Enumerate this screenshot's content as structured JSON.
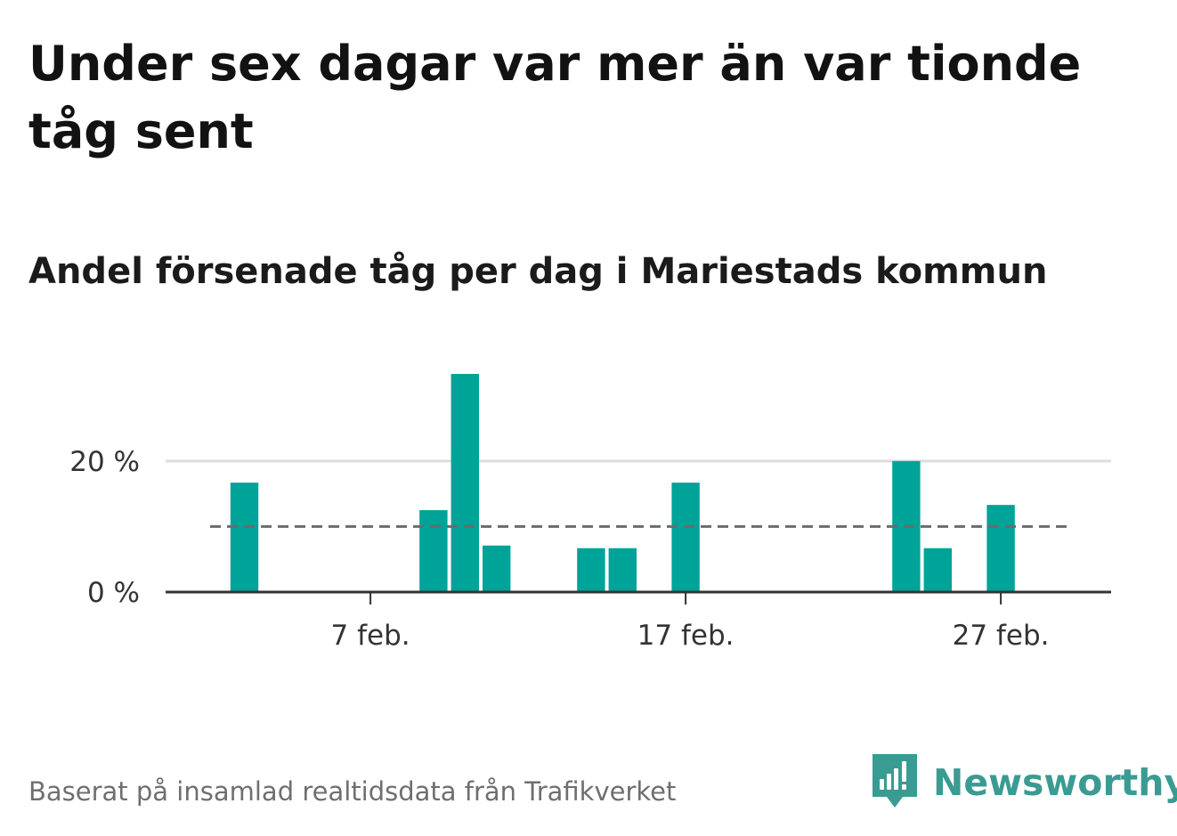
{
  "title": "Under sex dagar var mer än var tionde tåg sent",
  "subtitle": "Andel försenade tåg per dag i Mariestads kommun",
  "source": "Baserat på insamlad realtidsdata från Trafikverket",
  "brand": {
    "name": "Newsworthy",
    "icon": "newsworthy-logo-icon",
    "color": "#3a9b92"
  },
  "colors": {
    "bar": "#00a398",
    "reference_line": "#6b6b6b",
    "grid": "#dddddd",
    "axis": "#333333"
  },
  "chart_data": {
    "type": "bar",
    "x_unit": "day of February",
    "x": [
      3,
      9,
      10,
      11,
      14,
      15,
      17,
      24,
      25,
      27
    ],
    "values": [
      16.7,
      12.5,
      33.3,
      7.1,
      6.7,
      6.7,
      16.7,
      20.0,
      6.7,
      13.3
    ],
    "xlim": [
      1,
      30
    ],
    "ylim": [
      0,
      33.3
    ],
    "x_ticks": [
      {
        "value": 7,
        "label": "7 feb."
      },
      {
        "value": 17,
        "label": "17 feb."
      },
      {
        "value": 27,
        "label": "27 feb."
      }
    ],
    "y_ticks": [
      {
        "value": 0,
        "label": "0 %"
      },
      {
        "value": 20,
        "label": "20 %"
      }
    ],
    "reference_line": {
      "value": 10,
      "style": "dashed"
    },
    "grid": true
  }
}
